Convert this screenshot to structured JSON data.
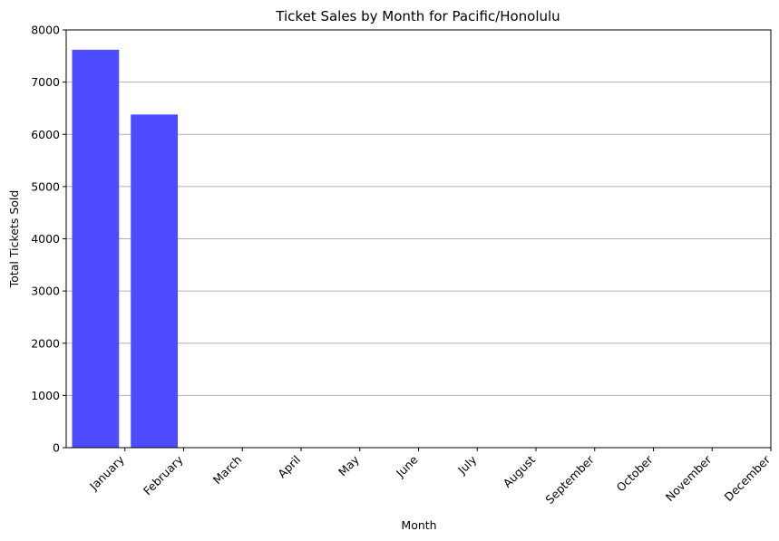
{
  "chart_data": {
    "type": "bar",
    "title": "Ticket Sales by Month for Pacific/Honolulu",
    "xlabel": "Month",
    "ylabel": "Total Tickets Sold",
    "categories": [
      "January",
      "February",
      "March",
      "April",
      "May",
      "June",
      "July",
      "August",
      "September",
      "October",
      "November",
      "December"
    ],
    "values": [
      7620,
      6380,
      0,
      0,
      0,
      0,
      0,
      0,
      0,
      0,
      0,
      0
    ],
    "ylim": [
      0,
      8000
    ],
    "yticks": [
      0,
      1000,
      2000,
      3000,
      4000,
      5000,
      6000,
      7000,
      8000
    ],
    "grid": "y",
    "bar_color": "#4d4dff",
    "grid_color": "#b0b0b0"
  }
}
